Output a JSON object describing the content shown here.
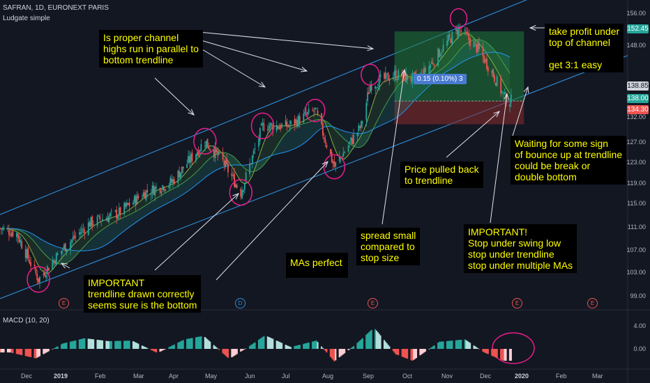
{
  "header": {
    "symbol_line": "SAFRAN, 1D, EURONEXT PARIS",
    "author": "Ludgate simple",
    "macd_label": "MACD (10, 20)"
  },
  "colors": {
    "background": "#131722",
    "up": "#26a69a",
    "down": "#ef5350",
    "channel": "#2f8fd8",
    "annotation_bg": "#000000",
    "annotation_text": "#ffff00",
    "circle": "#e91e8c"
  },
  "price_axis": {
    "ticks": [
      "156.00",
      "152.45",
      "148.00",
      "138.85",
      "138.00",
      "134.30",
      "132.00",
      "127.00",
      "123.00",
      "119.00",
      "115.00",
      "111.00",
      "107.00",
      "103.00",
      "99.00"
    ],
    "tags": [
      {
        "label": "152.45",
        "color": "#26a69a"
      },
      {
        "label": "138.85",
        "color": "#d1d4dc"
      },
      {
        "label": "138.00",
        "color": "#26a69a"
      },
      {
        "label": "134.30",
        "color": "#ef5350"
      }
    ]
  },
  "macd_axis": {
    "ticks": [
      "4.00",
      "0.00"
    ]
  },
  "time_axis": {
    "ticks": [
      "Dec",
      "2019",
      "Feb",
      "Mar",
      "Apr",
      "May",
      "Jun",
      "Jul",
      "Aug",
      "Sep",
      "Oct",
      "Nov",
      "Dec",
      "2020",
      "Feb",
      "Mar"
    ]
  },
  "event_badges": [
    "E",
    "D",
    "E",
    "E",
    "E"
  ],
  "position_tool": {
    "label": "0.15 (0.10%) 3"
  },
  "annotations": {
    "channel_highs": "Is proper channel\nhighs run in parallel to\nbottom trendline",
    "take_profit": "take profit under\ntop of channel\n\nget 3:1 easy",
    "waiting": "Waiting for some sign\nof bounce up at trendline\ncould be break or\ndouble bottom",
    "pulled_back": "Price pulled back\nto trendline",
    "spread": "spread small\ncompared to\nstop size",
    "stop": "IMPORTANT!\nStop under swing low\nstop under trendline\nstop under multiple MAs",
    "mas": "MAs perfect",
    "trendline": "IMPORTANT\ntrendline drawn correctly\nseems sure is the bottom"
  },
  "chart_data": {
    "type": "candlestick",
    "title": "SAFRAN, 1D, EURONEXT PARIS",
    "x_range": [
      "2018-11-27",
      "2020-03-31"
    ],
    "ylim": [
      97,
      158
    ],
    "price_path": [
      {
        "date": "2018-11-27",
        "close": 114
      },
      {
        "date": "2018-12-10",
        "close": 113
      },
      {
        "date": "2018-12-27",
        "close": 104
      },
      {
        "date": "2019-01-15",
        "close": 110
      },
      {
        "date": "2019-02-05",
        "close": 115
      },
      {
        "date": "2019-02-28",
        "close": 117
      },
      {
        "date": "2019-03-20",
        "close": 121
      },
      {
        "date": "2019-04-10",
        "close": 123
      },
      {
        "date": "2019-05-06",
        "close": 131
      },
      {
        "date": "2019-05-20",
        "close": 127
      },
      {
        "date": "2019-06-03",
        "close": 121
      },
      {
        "date": "2019-06-20",
        "close": 134
      },
      {
        "date": "2019-07-10",
        "close": 134
      },
      {
        "date": "2019-07-31",
        "close": 137
      },
      {
        "date": "2019-08-15",
        "close": 126
      },
      {
        "date": "2019-09-05",
        "close": 134
      },
      {
        "date": "2019-09-12",
        "close": 142
      },
      {
        "date": "2019-10-01",
        "close": 144
      },
      {
        "date": "2019-10-20",
        "close": 143
      },
      {
        "date": "2019-11-10",
        "close": 150
      },
      {
        "date": "2019-11-20",
        "close": 153
      },
      {
        "date": "2019-12-05",
        "close": 149
      },
      {
        "date": "2019-12-15",
        "close": 145
      },
      {
        "date": "2019-12-27",
        "close": 139
      }
    ],
    "channel_lower": [
      {
        "date": "2018-12-10",
        "price": 101.5
      },
      {
        "date": "2020-01-06",
        "price": 139.5
      }
    ],
    "channel_upper": [
      {
        "date": "2018-12-10",
        "price": 118
      },
      {
        "date": "2020-01-06",
        "price": 158
      }
    ],
    "trade": {
      "entry": 138.85,
      "take_profit": 152.45,
      "stop": 134.3
    },
    "macd": {
      "name": "MACD (10, 20)",
      "ylim": [
        -3,
        6
      ],
      "bars": [
        {
          "date": "2018-12-05",
          "value": -0.6
        },
        {
          "date": "2018-12-25",
          "value": -1.6
        },
        {
          "date": "2019-01-15",
          "value": 0.9
        },
        {
          "date": "2019-02-01",
          "value": 1.8
        },
        {
          "date": "2019-02-20",
          "value": 1.3
        },
        {
          "date": "2019-03-10",
          "value": 1.4
        },
        {
          "date": "2019-03-30",
          "value": -0.7
        },
        {
          "date": "2019-04-20",
          "value": 1.6
        },
        {
          "date": "2019-05-05",
          "value": 2.2
        },
        {
          "date": "2019-05-25",
          "value": -1.7
        },
        {
          "date": "2019-06-10",
          "value": 0.5
        },
        {
          "date": "2019-06-22",
          "value": 2.3
        },
        {
          "date": "2019-07-12",
          "value": 0.3
        },
        {
          "date": "2019-08-01",
          "value": 1.4
        },
        {
          "date": "2019-08-15",
          "value": -2.1
        },
        {
          "date": "2019-09-01",
          "value": 0.8
        },
        {
          "date": "2019-09-15",
          "value": 3.6
        },
        {
          "date": "2019-10-02",
          "value": -0.9
        },
        {
          "date": "2019-10-15",
          "value": -2.0
        },
        {
          "date": "2019-11-05",
          "value": 1.2
        },
        {
          "date": "2019-11-25",
          "value": 1.6
        },
        {
          "date": "2019-12-10",
          "value": -0.6
        },
        {
          "date": "2019-12-25",
          "value": -2.0
        }
      ]
    }
  }
}
